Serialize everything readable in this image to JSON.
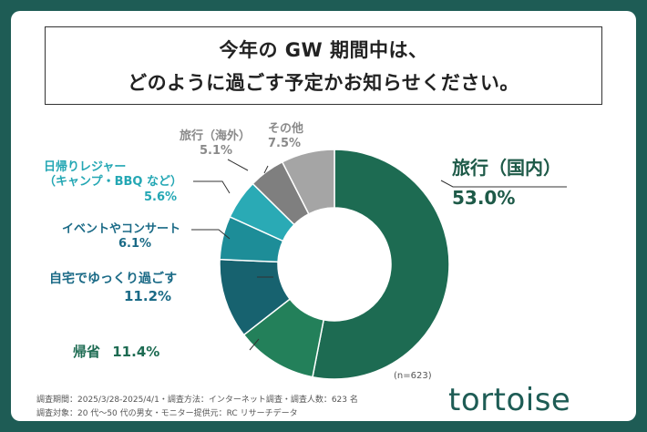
{
  "title": {
    "line1": "今年の GW 期間中は、",
    "line2": "どのように過ごす予定かお知らせください。"
  },
  "chart_data": {
    "type": "pie",
    "title": "今年の GW 期間中は、どのように過ごす予定かお知らせください。",
    "sample_size": "(n=623)",
    "slices": [
      {
        "name": "旅行（国内）",
        "value": 53.0,
        "label": "53.0%",
        "color": "#1d6b52"
      },
      {
        "name": "帰省",
        "value": 11.4,
        "label": "11.4%",
        "color": "#23805a"
      },
      {
        "name": "自宅でゆっくり過ごす",
        "value": 11.2,
        "label": "11.2%",
        "color": "#17626f"
      },
      {
        "name": "イベントやコンサート",
        "value": 6.1,
        "label": "6.1%",
        "color": "#1d8d98"
      },
      {
        "name": "日帰りレジャー（キャンプ・BBQ など）",
        "value": 5.6,
        "label": "5.6%",
        "color": "#2aaab5"
      },
      {
        "name": "旅行（海外）",
        "value": 5.1,
        "label": "5.1%",
        "color": "#7f7f7f"
      },
      {
        "name": "その他",
        "value": 7.5,
        "label": "7.5%",
        "color": "#a5a5a5"
      }
    ]
  },
  "labels": {
    "domestic_name": "旅行（国内）",
    "domestic_value": "53.0%",
    "homecoming_name": "帰省",
    "homecoming_value": "11.4%",
    "home_name": "自宅でゆっくり過ごす",
    "home_value": "11.2%",
    "event_name": "イベントやコンサート",
    "event_value": "6.1%",
    "leisure_name1": "日帰りレジャー",
    "leisure_name2": "（キャンプ・BBQ など）",
    "leisure_value": "5.6%",
    "overseas_name": "旅行（海外）",
    "overseas_value": "5.1%",
    "other_name": "その他",
    "other_value": "7.5%"
  },
  "footer": {
    "line1": "調査期間：2025/3/28-2025/4/1・調査方法：インターネット調査・調査人数：623 名",
    "line2": "調査対象：20 代〜50 代の男女・モニター提供元：RC リサーチデータ"
  },
  "logo": {
    "text": "tortoise"
  }
}
